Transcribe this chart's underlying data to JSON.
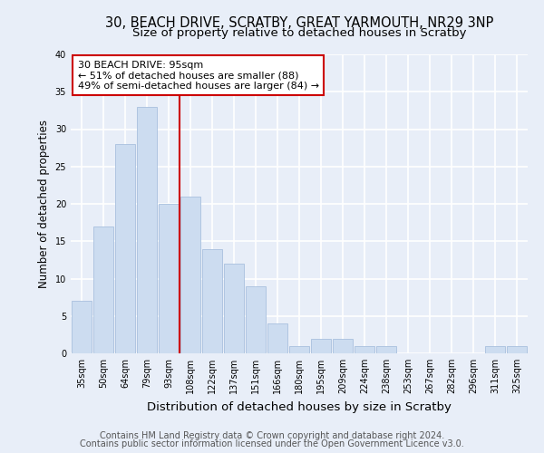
{
  "title1": "30, BEACH DRIVE, SCRATBY, GREAT YARMOUTH, NR29 3NP",
  "title2": "Size of property relative to detached houses in Scratby",
  "xlabel": "Distribution of detached houses by size in Scratby",
  "ylabel": "Number of detached properties",
  "categories": [
    "35sqm",
    "50sqm",
    "64sqm",
    "79sqm",
    "93sqm",
    "108sqm",
    "122sqm",
    "137sqm",
    "151sqm",
    "166sqm",
    "180sqm",
    "195sqm",
    "209sqm",
    "224sqm",
    "238sqm",
    "253sqm",
    "267sqm",
    "282sqm",
    "296sqm",
    "311sqm",
    "325sqm"
  ],
  "values": [
    7,
    17,
    28,
    33,
    20,
    21,
    14,
    12,
    9,
    4,
    1,
    2,
    2,
    1,
    1,
    0,
    0,
    0,
    0,
    1,
    1
  ],
  "bar_color": "#ccdcf0",
  "bar_edge_color": "#a8c0de",
  "vline_x": 4.5,
  "vline_color": "#cc0000",
  "annotation_line1": "30 BEACH DRIVE: 95sqm",
  "annotation_line2": "← 51% of detached houses are smaller (88)",
  "annotation_line3": "49% of semi-detached houses are larger (84) →",
  "box_color": "#cc0000",
  "ylim": [
    0,
    40
  ],
  "yticks": [
    0,
    5,
    10,
    15,
    20,
    25,
    30,
    35,
    40
  ],
  "footer1": "Contains HM Land Registry data © Crown copyright and database right 2024.",
  "footer2": "Contains public sector information licensed under the Open Government Licence v3.0.",
  "bg_color": "#e8eef8",
  "plot_bg_color": "#e8eef8",
  "grid_color": "#ffffff",
  "title1_fontsize": 10.5,
  "title2_fontsize": 9.5,
  "xlabel_fontsize": 9.5,
  "ylabel_fontsize": 8.5,
  "tick_fontsize": 7,
  "ann_fontsize": 8,
  "footer_fontsize": 7
}
